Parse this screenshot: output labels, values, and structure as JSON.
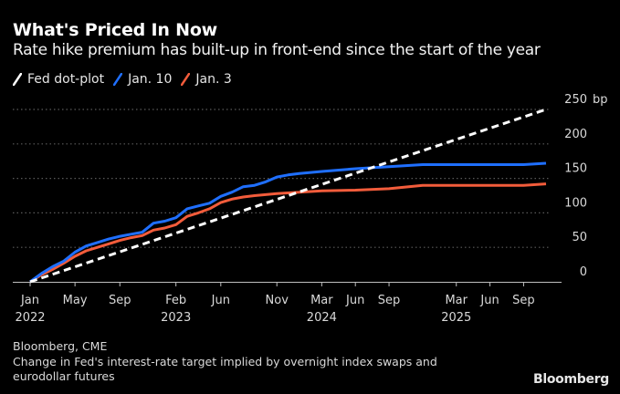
{
  "header": {
    "title": "What's Priced In Now",
    "subtitle": "Rate hike premium has built-up in front-end since the start of the year"
  },
  "footer": {
    "source": "Bloomberg, CME",
    "note": "Change in Fed's interest-rate target implied by overnight index swaps and eurodollar futures",
    "brand": "Bloomberg"
  },
  "chart_data": {
    "type": "line",
    "title": "What's Priced In Now",
    "subtitle": "Rate hike premium has built-up in front-end since the start of the year",
    "xlabel": "",
    "ylabel": "bp",
    "y_unit_label": "bp",
    "ylim": [
      0,
      250
    ],
    "yticks": [
      0,
      50,
      100,
      150,
      200,
      250
    ],
    "ytick_labels": [
      "0",
      "50",
      "100",
      "150",
      "200",
      "250 bp"
    ],
    "y_axis_side": "right",
    "grid": "horizontal dotted",
    "legend_position": "top-left",
    "x_unit": "months since Jan 2022",
    "xlim": [
      0,
      46
    ],
    "xticks": [
      {
        "month": 0,
        "label": "Jan",
        "year": "2022"
      },
      {
        "month": 4,
        "label": "May",
        "year": ""
      },
      {
        "month": 8,
        "label": "Sep",
        "year": ""
      },
      {
        "month": 13,
        "label": "Feb",
        "year": "2023"
      },
      {
        "month": 17,
        "label": "Jun",
        "year": ""
      },
      {
        "month": 22,
        "label": "Nov",
        "year": ""
      },
      {
        "month": 26,
        "label": "Mar",
        "year": "2024"
      },
      {
        "month": 29,
        "label": "Jun",
        "year": ""
      },
      {
        "month": 32,
        "label": "Sep",
        "year": ""
      },
      {
        "month": 38,
        "label": "Mar",
        "year": "2025"
      },
      {
        "month": 41,
        "label": "Jun",
        "year": ""
      },
      {
        "month": 44,
        "label": "Sep",
        "year": ""
      }
    ],
    "series": [
      {
        "name": "Fed dot-plot",
        "color": "#ffffff",
        "style": "dashed",
        "x": [
          0,
          46
        ],
        "values": [
          0,
          250
        ]
      },
      {
        "name": "Jan. 10",
        "color": "#1f6fff",
        "style": "solid",
        "x": [
          0,
          1,
          2,
          3,
          4,
          5,
          6,
          7,
          8,
          9,
          10,
          11,
          12,
          13,
          14,
          15,
          16,
          17,
          18,
          19,
          20,
          21,
          22,
          23,
          24,
          26,
          29,
          32,
          35,
          38,
          41,
          44,
          46
        ],
        "values": [
          0,
          12,
          22,
          30,
          43,
          52,
          57,
          62,
          66,
          69,
          72,
          85,
          88,
          93,
          106,
          110,
          114,
          124,
          130,
          138,
          140,
          145,
          152,
          155,
          157,
          160,
          164,
          167,
          170,
          170,
          170,
          170,
          172
        ]
      },
      {
        "name": "Jan. 3",
        "color": "#f25c3b",
        "style": "solid",
        "x": [
          0,
          1,
          2,
          3,
          4,
          5,
          6,
          7,
          8,
          9,
          10,
          11,
          12,
          13,
          14,
          15,
          16,
          17,
          18,
          19,
          20,
          22,
          24,
          26,
          29,
          32,
          35,
          38,
          41,
          44,
          46
        ],
        "values": [
          0,
          10,
          18,
          27,
          37,
          45,
          50,
          55,
          60,
          64,
          67,
          75,
          78,
          83,
          95,
          100,
          106,
          115,
          120,
          123,
          125,
          128,
          130,
          132,
          133,
          135,
          140,
          140,
          140,
          140,
          142
        ]
      }
    ]
  }
}
